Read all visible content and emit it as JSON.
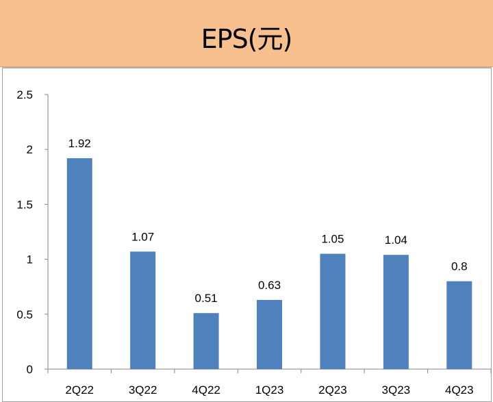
{
  "header": {
    "title": "EPS(元)"
  },
  "chart_data": {
    "type": "bar",
    "title": "EPS(元)",
    "categories": [
      "2Q22",
      "3Q22",
      "4Q22",
      "1Q23",
      "2Q23",
      "3Q23",
      "4Q23"
    ],
    "values": [
      1.92,
      1.07,
      0.51,
      0.63,
      1.05,
      1.04,
      0.8
    ],
    "value_labels": [
      "1.92",
      "1.07",
      "0.51",
      "0.63",
      "1.05",
      "1.04",
      "0.8"
    ],
    "yticks": [
      "0",
      "0.5",
      "1",
      "1.5",
      "2",
      "2.5"
    ],
    "ylim": [
      0,
      2.5
    ],
    "grid": false,
    "legend": "none",
    "bar_color": "#4F81BD",
    "header_color": "#F8BF8F"
  }
}
